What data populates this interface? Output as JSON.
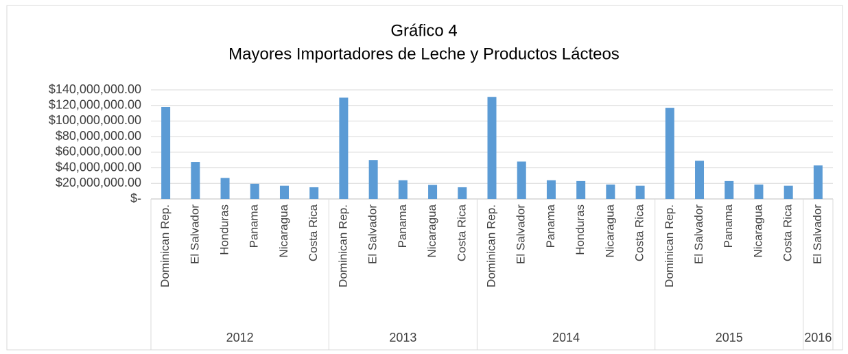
{
  "chart_data": {
    "type": "bar",
    "title": "Gráfico 4",
    "subtitle": "Mayores Importadores de Leche y Productos Lácteos",
    "color": "#5b9bd5",
    "grid": true,
    "ylim": [
      0,
      140000000
    ],
    "yticks": [
      {
        "value": 0,
        "label": "$-"
      },
      {
        "value": 20000000,
        "label": "$20,000,000.00"
      },
      {
        "value": 40000000,
        "label": "$40,000,000.00"
      },
      {
        "value": 60000000,
        "label": "$60,000,000.00"
      },
      {
        "value": 80000000,
        "label": "$80,000,000.00"
      },
      {
        "value": 100000000,
        "label": "$100,000,000.00"
      },
      {
        "value": 120000000,
        "label": "$120,000,000.00"
      },
      {
        "value": 140000000,
        "label": "$140,000,000.00"
      }
    ],
    "groups": [
      {
        "label": "2012",
        "categories": [
          "Dominican Rep.",
          "El Salvador",
          "Honduras",
          "Panama",
          "Nicaragua",
          "Costa Rica"
        ],
        "values": [
          118000000,
          47500000,
          27000000,
          19500000,
          17000000,
          15000000
        ]
      },
      {
        "label": "2013",
        "categories": [
          "Dominican Rep.",
          "El Salvador",
          "Panama",
          "Nicaragua",
          "Costa Rica"
        ],
        "values": [
          130000000,
          50000000,
          24000000,
          18000000,
          15000000
        ]
      },
      {
        "label": "2014",
        "categories": [
          "Dominican Rep.",
          "El Salvador",
          "Panama",
          "Honduras",
          "Nicaragua",
          "Costa Rica"
        ],
        "values": [
          131000000,
          48000000,
          24000000,
          23000000,
          18500000,
          17000000
        ]
      },
      {
        "label": "2015",
        "categories": [
          "Dominican Rep.",
          "El Salvador",
          "Panama",
          "Nicaragua",
          "Costa Rica"
        ],
        "values": [
          117000000,
          49000000,
          23000000,
          18500000,
          17000000
        ]
      },
      {
        "label": "2016",
        "categories": [
          "El Salvador"
        ],
        "values": [
          43000000
        ]
      }
    ]
  }
}
